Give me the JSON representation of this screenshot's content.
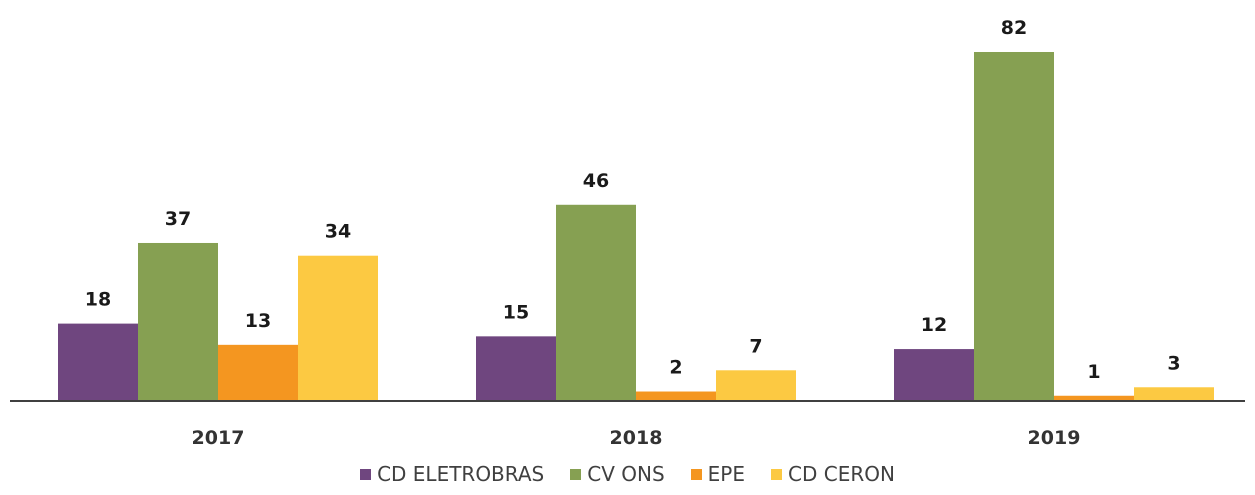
{
  "chart_data": {
    "type": "bar",
    "categories": [
      "2017",
      "2018",
      "2019"
    ],
    "series": [
      {
        "name": "CD ELETROBRAS",
        "color": "#6F467F",
        "values": [
          18,
          15,
          12
        ]
      },
      {
        "name": "CV ONS",
        "color": "#86A052",
        "values": [
          37,
          46,
          82
        ]
      },
      {
        "name": "EPE",
        "color": "#F49620",
        "values": [
          13,
          2,
          1
        ]
      },
      {
        "name": "CD CERON",
        "color": "#FCC942",
        "values": [
          34,
          7,
          3
        ]
      }
    ],
    "ylim": [
      0,
      82
    ],
    "grid": false,
    "legend_position": "bottom",
    "axis_color": "#404040"
  }
}
